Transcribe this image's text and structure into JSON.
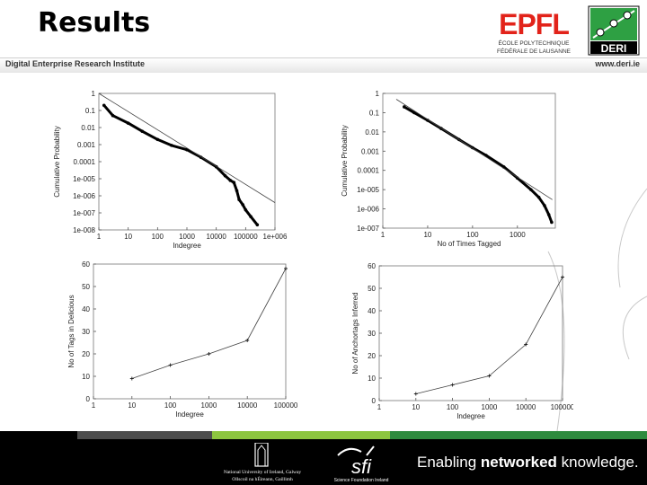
{
  "slide": {
    "title": "Results",
    "org_name": "Digital Enterprise Research Institute",
    "url": "www.deri.ie",
    "epfl_mark": "EPFL",
    "epfl_sub1": "ÉCOLE POLYTECHNIQUE",
    "epfl_sub2": "FÉDÉRALE DE LAUSANNE",
    "deri_mark": "DERI",
    "tagline_a": "Enabling ",
    "tagline_b": "networked",
    "tagline_c": " knowledge.",
    "footer_nuig_1": "National University of Ireland, Galway",
    "footer_nuig_2": "Ollscoil na hÉireann, Gaillimh",
    "footer_sfi_mark": "sfi",
    "footer_sfi_sub": "Science Foundation Ireland",
    "colors": {
      "stripe_gray": "#4d4d4d",
      "stripe_green_light": "#8dc63f",
      "stripe_green_dark": "#2e8b3e"
    }
  },
  "chart_data": [
    {
      "type": "line",
      "scale": "log-log",
      "xlabel": "Indegree",
      "ylabel": "Cumulative Probability",
      "xticks": [
        "1",
        "10",
        "100",
        "1000",
        "10000",
        "100000",
        "1e+006"
      ],
      "yticks": [
        "1",
        "0.1",
        "0.01",
        "0.001",
        "0.0001",
        "1e-005",
        "1e-006",
        "1e-007",
        "1e-008"
      ],
      "xlim": [
        1,
        1000000
      ],
      "ylim": [
        1e-08,
        1
      ],
      "series": [
        {
          "style": "points",
          "x": [
            1.5,
            3,
            10,
            30,
            100,
            300,
            1000,
            3000,
            10000,
            20000,
            30000,
            40000,
            50000,
            60000,
            80000,
            100000,
            150000,
            250000
          ],
          "y": [
            0.2,
            0.05,
            0.018,
            0.006,
            0.002,
            0.0009,
            0.0005,
            0.00018,
            5e-05,
            1.5e-05,
            8e-06,
            6e-06,
            2e-06,
            6e-07,
            3e-07,
            1.5e-07,
            6e-08,
            2e-08
          ]
        },
        {
          "style": "line",
          "x": [
            1,
            1000000
          ],
          "y": [
            1,
            4e-07
          ]
        }
      ]
    },
    {
      "type": "line",
      "scale": "log-log",
      "xlabel": "No of Times Tagged",
      "ylabel": "Cumulative Probability",
      "xticks": [
        "1",
        "10",
        "100",
        "1000"
      ],
      "yticks": [
        "1",
        "0.1",
        "0.01",
        "0.001",
        "0.0001",
        "1e-005",
        "1e-006",
        "1e-007"
      ],
      "xlim": [
        1,
        7000
      ],
      "ylim": [
        1e-07,
        1
      ],
      "series": [
        {
          "style": "points",
          "x": [
            3,
            5,
            10,
            20,
            50,
            100,
            200,
            500,
            1000,
            2000,
            3000,
            4000,
            5000,
            5800
          ],
          "y": [
            0.2,
            0.1,
            0.04,
            0.015,
            0.004,
            0.0015,
            0.0006,
            0.00015,
            4e-05,
            1e-05,
            4e-06,
            1.5e-06,
            5e-07,
            2e-07
          ]
        },
        {
          "style": "line",
          "x": [
            2,
            6000
          ],
          "y": [
            0.5,
            3e-06
          ]
        }
      ]
    },
    {
      "type": "line",
      "scale": "log-x",
      "xlabel": "Indegree",
      "ylabel": "No of Tags in Delicious",
      "xticks": [
        "1",
        "10",
        "100",
        "1000",
        "10000",
        "100000"
      ],
      "yticks": [
        "0",
        "10",
        "20",
        "30",
        "40",
        "50",
        "60"
      ],
      "xlim": [
        1,
        100000
      ],
      "ylim": [
        0,
        60
      ],
      "series": [
        {
          "x": [
            10,
            100,
            1000,
            10000,
            100000
          ],
          "y": [
            9,
            15,
            20,
            26,
            58
          ]
        }
      ]
    },
    {
      "type": "line",
      "scale": "log-x",
      "xlabel": "Indegree",
      "ylabel": "No of Anchortags Inferred",
      "xticks": [
        "1",
        "10",
        "100",
        "1000",
        "10000",
        "100000"
      ],
      "yticks": [
        "0",
        "10",
        "20",
        "30",
        "40",
        "50",
        "60"
      ],
      "xlim": [
        1,
        100000
      ],
      "ylim": [
        0,
        60
      ],
      "series": [
        {
          "x": [
            10,
            100,
            1000,
            10000,
            100000
          ],
          "y": [
            3,
            7,
            11,
            25,
            55
          ]
        }
      ]
    }
  ]
}
